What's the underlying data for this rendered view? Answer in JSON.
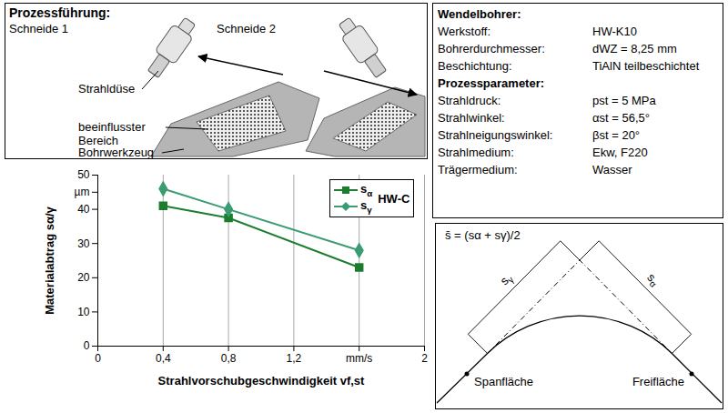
{
  "process_panel": {
    "title": "Prozessführung:",
    "views": [
      "Schneide 1",
      "Schneide 2"
    ],
    "labels": [
      "Strahldüse",
      "beeinflusster Bereich",
      "Bohrwerkzeug"
    ]
  },
  "tool_table": {
    "sections": [
      {
        "title": "Wendelbohrer:",
        "rows": [
          [
            "Werkstoff:",
            "HW-K10"
          ],
          [
            "Bohrerdurchmesser:",
            "dWZ = 8,25 mm"
          ],
          [
            "Beschichtung:",
            "TiAlN teilbeschichtet"
          ]
        ]
      },
      {
        "title": "Prozessparameter:",
        "rows": [
          [
            "Strahldruck:",
            "pst = 5 MPa"
          ],
          [
            "Strahlwinkel:",
            "αst = 56,5°"
          ],
          [
            "Strahlneigungswinkel:",
            "βst = 20°"
          ],
          [
            "Strahlmedium:",
            "Ekw, F220"
          ],
          [
            "Trägermedium:",
            "Wasser"
          ]
        ]
      }
    ]
  },
  "chart_data": {
    "type": "line",
    "x_label": "Strahlvorschubgeschwindigkeit vf,st",
    "y_label": "Materialabtrag sα/γ",
    "x": [
      0.4,
      0.8,
      1.6
    ],
    "series": [
      {
        "name": "sα",
        "color": "#1b7d2e",
        "marker": "square",
        "values": [
          41,
          37.5,
          23
        ]
      },
      {
        "name": "sγ",
        "color": "#3b9b72",
        "marker": "diamond",
        "values": [
          46,
          40,
          28
        ]
      }
    ],
    "annotations": [
      "HW-C"
    ],
    "xlim": [
      0,
      2
    ],
    "xticks": [
      0,
      {
        "value": 0.4,
        "label": "0,4"
      },
      {
        "value": 0.8,
        "label": "0,8"
      },
      {
        "value": 1.2,
        "label": "1,2"
      },
      {
        "value": 1.6,
        "label": "mm/s"
      },
      2
    ],
    "ylim": [
      0,
      50
    ],
    "yticks": [
      0,
      10,
      20,
      30,
      40,
      {
        "value": 45,
        "label": "µm"
      },
      50
    ],
    "grid": "x",
    "legend": "top-right"
  },
  "geometry_panel": {
    "formula": "s̄ = (sα + sγ)/2",
    "dimensions": [
      "sγ",
      "sα"
    ],
    "surfaces": [
      "Spanfläche",
      "Freifläche"
    ]
  }
}
